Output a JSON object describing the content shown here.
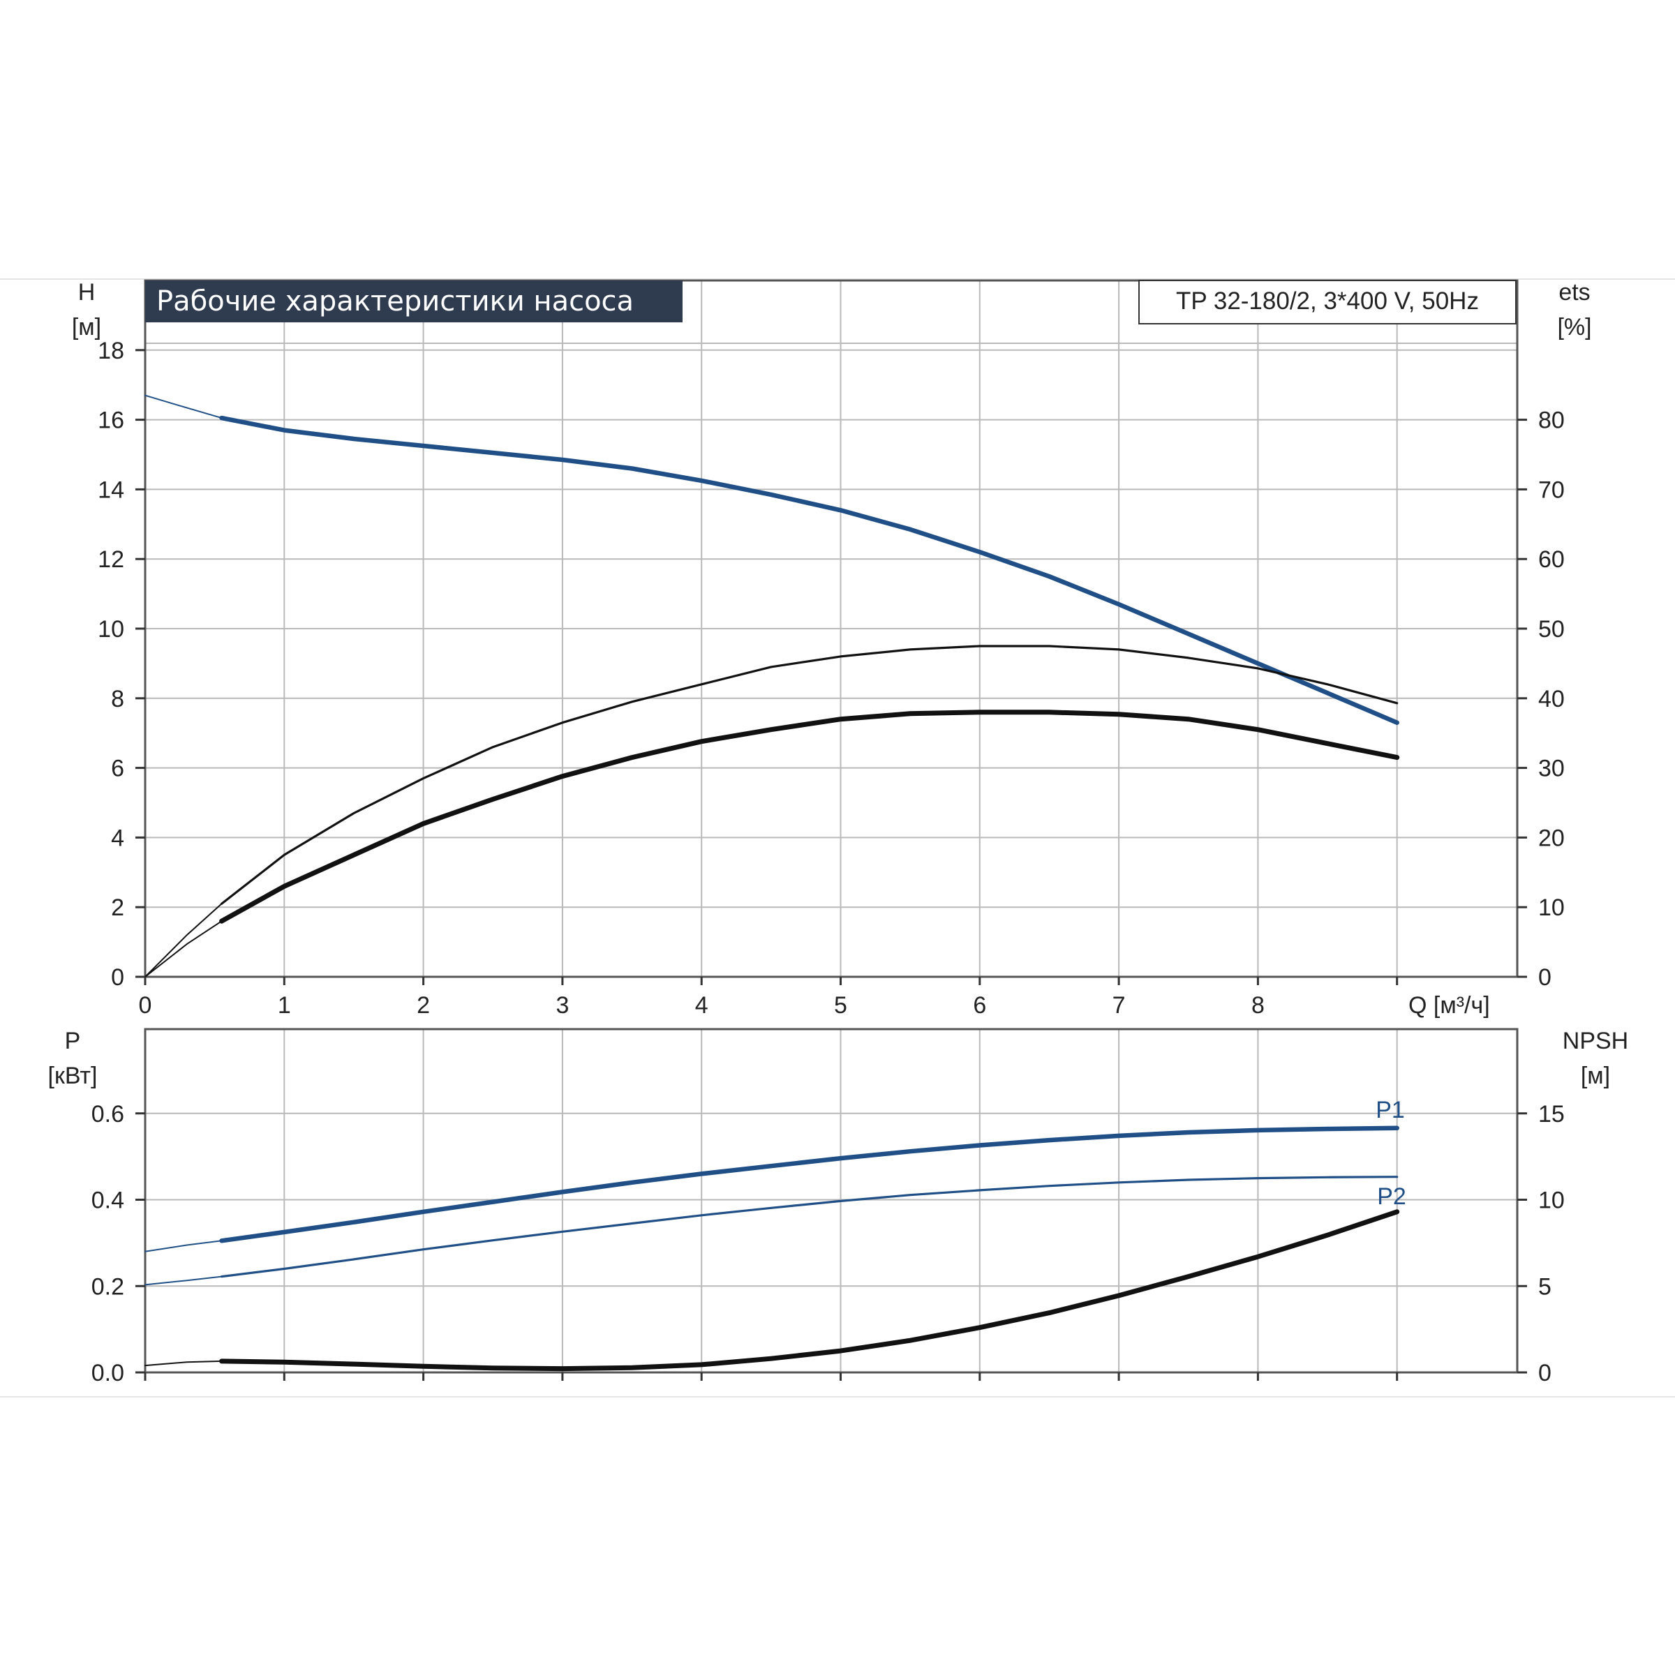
{
  "chart_data": [
    {
      "type": "line",
      "title": "Рабочие характеристики насоса",
      "model": "TP 32-180/2, 3*400 V, 50Hz",
      "y_left_label": [
        "H",
        "[м]"
      ],
      "y_right_label": [
        "ets",
        "[%]"
      ],
      "x_label": "Q [м³/ч]",
      "xlim": [
        0,
        9
      ],
      "x_ticks": [
        0,
        1,
        2,
        3,
        4,
        5,
        6,
        7,
        8
      ],
      "ylim_left": [
        0,
        20
      ],
      "y_left_ticks": [
        0,
        2,
        4,
        6,
        8,
        10,
        12,
        14,
        16,
        18
      ],
      "ylim_right": [
        0,
        100
      ],
      "y_right_ticks": [
        0,
        10,
        20,
        30,
        40,
        50,
        60,
        70,
        80
      ],
      "grid": true,
      "series": [
        {
          "axis": "left",
          "style": "blue-thick",
          "extrapolation": {
            "x": [
              0,
              0.25,
              0.55
            ],
            "y": [
              16.7,
              16.4,
              16.05
            ]
          },
          "x": [
            0.55,
            1,
            1.5,
            2,
            2.5,
            3,
            3.5,
            4,
            4.5,
            5,
            5.5,
            6,
            6.5,
            7,
            7.5,
            8,
            8.5,
            9
          ],
          "y": [
            16.05,
            15.7,
            15.45,
            15.25,
            15.05,
            14.85,
            14.6,
            14.25,
            13.85,
            13.4,
            12.85,
            12.2,
            11.5,
            10.7,
            9.85,
            9.0,
            8.15,
            7.3
          ]
        },
        {
          "axis": "right",
          "style": "black-thin",
          "extrapolation": {
            "x": [
              0,
              0.3,
              0.55
            ],
            "y": [
              0,
              6,
              10.5
            ]
          },
          "x": [
            0.55,
            1,
            1.5,
            2,
            2.5,
            3,
            3.5,
            4,
            4.5,
            5,
            5.5,
            6,
            6.5,
            7,
            7.5,
            8,
            8.5,
            9
          ],
          "y": [
            10.5,
            17.5,
            23.5,
            28.5,
            33,
            36.5,
            39.5,
            42,
            44.5,
            46,
            47,
            47.5,
            47.5,
            47,
            45.8,
            44.3,
            42,
            39.3
          ]
        },
        {
          "axis": "right",
          "style": "black-thick",
          "extrapolation": {
            "x": [
              0,
              0.3,
              0.55
            ],
            "y": [
              0,
              4.7,
              8
            ]
          },
          "x": [
            0.55,
            1,
            1.5,
            2,
            2.5,
            3,
            3.5,
            4,
            4.5,
            5,
            5.5,
            6,
            6.5,
            7,
            7.5,
            8,
            8.5,
            9
          ],
          "y": [
            8,
            13,
            17.5,
            22,
            25.5,
            28.8,
            31.5,
            33.8,
            35.5,
            37,
            37.8,
            38,
            38,
            37.7,
            37,
            35.5,
            33.5,
            31.5
          ]
        }
      ]
    },
    {
      "type": "line",
      "y_left_label": [
        "P",
        "[кВт]"
      ],
      "y_right_label": [
        "NPSH",
        "[м]"
      ],
      "xlim": [
        0,
        9
      ],
      "ylim_left": [
        0,
        0.8
      ],
      "y_left_ticks": [
        "0.0",
        "0.2",
        "0.4",
        "0.6"
      ],
      "ylim_right": [
        0,
        20
      ],
      "y_right_ticks": [
        0,
        5,
        10,
        15
      ],
      "grid": true,
      "series": [
        {
          "name": "P1",
          "axis": "left",
          "style": "blue-thick",
          "extrapolation": {
            "x": [
              0,
              0.3,
              0.55
            ],
            "y": [
              0.28,
              0.295,
              0.305
            ]
          },
          "x": [
            0.55,
            1,
            1.5,
            2,
            2.5,
            3,
            3.5,
            4,
            4.5,
            5,
            5.5,
            6,
            6.5,
            7,
            7.5,
            8,
            8.5,
            9
          ],
          "y": [
            0.305,
            0.325,
            0.348,
            0.372,
            0.395,
            0.418,
            0.44,
            0.46,
            0.478,
            0.496,
            0.512,
            0.526,
            0.538,
            0.548,
            0.556,
            0.561,
            0.564,
            0.566
          ]
        },
        {
          "name": "P2",
          "axis": "left",
          "style": "blue-thin",
          "extrapolation": {
            "x": [
              0,
              0.3,
              0.55
            ],
            "y": [
              0.203,
              0.213,
              0.222
            ]
          },
          "x": [
            0.55,
            1,
            1.5,
            2,
            2.5,
            3,
            3.5,
            4,
            4.5,
            5,
            5.5,
            6,
            6.5,
            7,
            7.5,
            8,
            8.5,
            9
          ],
          "y": [
            0.222,
            0.24,
            0.262,
            0.285,
            0.306,
            0.326,
            0.345,
            0.364,
            0.381,
            0.397,
            0.411,
            0.422,
            0.432,
            0.44,
            0.446,
            0.45,
            0.452,
            0.453
          ]
        },
        {
          "name": "NPSH",
          "axis": "right",
          "style": "black-thick",
          "extrapolation": {
            "x": [
              0,
              0.3,
              0.55
            ],
            "y": [
              0.4,
              0.6,
              0.65
            ]
          },
          "x": [
            0.55,
            1,
            1.5,
            2,
            2.5,
            3,
            3.5,
            4,
            4.5,
            5,
            5.5,
            6,
            6.5,
            7,
            7.5,
            8,
            8.5,
            9
          ],
          "y": [
            0.65,
            0.6,
            0.48,
            0.35,
            0.25,
            0.22,
            0.27,
            0.45,
            0.8,
            1.25,
            1.85,
            2.6,
            3.45,
            4.45,
            5.55,
            6.7,
            7.95,
            9.3
          ]
        }
      ]
    }
  ]
}
